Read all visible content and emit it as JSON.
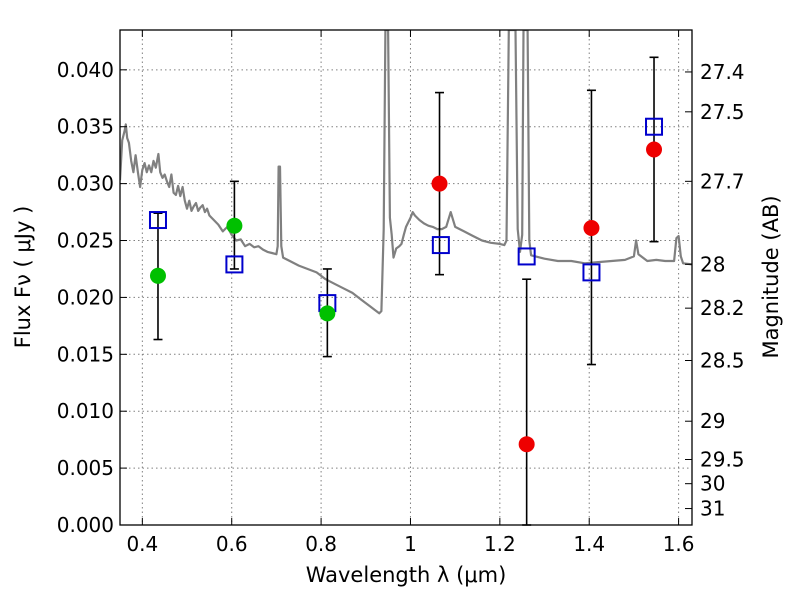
{
  "chart_data": {
    "type": "scatter",
    "xlabel": "Wavelength  λ (μm)",
    "ylabel": "Flux  Fν  ( μJy )",
    "y2label": "Magnitude (AB)",
    "xlim": [
      0.35,
      1.63
    ],
    "ylim": [
      0.0,
      0.0435
    ],
    "grid": true,
    "x_ticks": [
      {
        "value": 0.4,
        "label": "0.4"
      },
      {
        "value": 0.6,
        "label": "0.6"
      },
      {
        "value": 0.8,
        "label": "0.8"
      },
      {
        "value": 1.0,
        "label": "1"
      },
      {
        "value": 1.2,
        "label": "1.2"
      },
      {
        "value": 1.4,
        "label": "1.4"
      },
      {
        "value": 1.6,
        "label": "1.6"
      }
    ],
    "y_ticks": [
      {
        "value": 0.0,
        "label": "0.000"
      },
      {
        "value": 0.005,
        "label": "0.005"
      },
      {
        "value": 0.01,
        "label": "0.010"
      },
      {
        "value": 0.015,
        "label": "0.015"
      },
      {
        "value": 0.02,
        "label": "0.020"
      },
      {
        "value": 0.025,
        "label": "0.025"
      },
      {
        "value": 0.03,
        "label": "0.030"
      },
      {
        "value": 0.035,
        "label": "0.035"
      },
      {
        "value": 0.04,
        "label": "0.040"
      }
    ],
    "y2_ticks": [
      {
        "value": 27.4,
        "label": "27.4"
      },
      {
        "value": 27.5,
        "label": "27.5"
      },
      {
        "value": 27.7,
        "label": "27.7"
      },
      {
        "value": 28,
        "label": "28"
      },
      {
        "value": 28.2,
        "label": "28.2"
      },
      {
        "value": 28.5,
        "label": "28.5"
      },
      {
        "value": 29,
        "label": "29"
      },
      {
        "value": 29.5,
        "label": "29.5"
      },
      {
        "value": 30,
        "label": "30"
      },
      {
        "value": 31,
        "label": "31"
      }
    ],
    "observed_green": [
      {
        "x": 0.435,
        "y": 0.0219,
        "err_low": 0.0163,
        "err_high": 0.0274
      },
      {
        "x": 0.606,
        "y": 0.0263,
        "err_low": 0.0225,
        "err_high": 0.0302
      },
      {
        "x": 0.814,
        "y": 0.0186,
        "err_low": 0.0148,
        "err_high": 0.0225
      }
    ],
    "observed_red": [
      {
        "x": 1.065,
        "y": 0.03,
        "err_low": 0.022,
        "err_high": 0.038
      },
      {
        "x": 1.26,
        "y": 0.0071,
        "err_low": 0.0,
        "err_high": 0.0216
      },
      {
        "x": 1.405,
        "y": 0.0261,
        "err_low": 0.0141,
        "err_high": 0.0382
      },
      {
        "x": 1.545,
        "y": 0.033,
        "err_low": 0.0249,
        "err_high": 0.0411
      }
    ],
    "model_points": [
      {
        "x": 0.435,
        "y": 0.0268
      },
      {
        "x": 0.606,
        "y": 0.0229
      },
      {
        "x": 0.814,
        "y": 0.0195
      },
      {
        "x": 1.068,
        "y": 0.0246
      },
      {
        "x": 1.26,
        "y": 0.0236
      },
      {
        "x": 1.405,
        "y": 0.0222
      },
      {
        "x": 1.545,
        "y": 0.035
      }
    ],
    "sed_curve": [
      [
        0.35,
        0.0303
      ],
      [
        0.355,
        0.0338
      ],
      [
        0.36,
        0.0346
      ],
      [
        0.363,
        0.0352
      ],
      [
        0.366,
        0.034
      ],
      [
        0.37,
        0.0336
      ],
      [
        0.375,
        0.032
      ],
      [
        0.38,
        0.031
      ],
      [
        0.385,
        0.0325
      ],
      [
        0.39,
        0.031
      ],
      [
        0.395,
        0.0297
      ],
      [
        0.4,
        0.0312
      ],
      [
        0.405,
        0.0318
      ],
      [
        0.41,
        0.031
      ],
      [
        0.415,
        0.0316
      ],
      [
        0.42,
        0.031
      ],
      [
        0.425,
        0.032
      ],
      [
        0.43,
        0.0314
      ],
      [
        0.436,
        0.0326
      ],
      [
        0.44,
        0.031
      ],
      [
        0.445,
        0.0305
      ],
      [
        0.45,
        0.0308
      ],
      [
        0.455,
        0.0302
      ],
      [
        0.46,
        0.0297
      ],
      [
        0.465,
        0.0308
      ],
      [
        0.47,
        0.0292
      ],
      [
        0.475,
        0.029
      ],
      [
        0.48,
        0.0298
      ],
      [
        0.485,
        0.0289
      ],
      [
        0.49,
        0.0297
      ],
      [
        0.495,
        0.0285
      ],
      [
        0.5,
        0.0278
      ],
      [
        0.505,
        0.0285
      ],
      [
        0.51,
        0.0276
      ],
      [
        0.515,
        0.028
      ],
      [
        0.52,
        0.0283
      ],
      [
        0.525,
        0.0276
      ],
      [
        0.53,
        0.0279
      ],
      [
        0.535,
        0.0281
      ],
      [
        0.54,
        0.0275
      ],
      [
        0.545,
        0.0278
      ],
      [
        0.55,
        0.0272
      ],
      [
        0.56,
        0.0268
      ],
      [
        0.57,
        0.0264
      ],
      [
        0.58,
        0.0258
      ],
      [
        0.59,
        0.0262
      ],
      [
        0.6,
        0.0255
      ],
      [
        0.61,
        0.025
      ],
      [
        0.62,
        0.0251
      ],
      [
        0.63,
        0.0245
      ],
      [
        0.64,
        0.0247
      ],
      [
        0.65,
        0.0244
      ],
      [
        0.66,
        0.0245
      ],
      [
        0.67,
        0.0242
      ],
      [
        0.68,
        0.024
      ],
      [
        0.69,
        0.0239
      ],
      [
        0.7,
        0.0238
      ],
      [
        0.703,
        0.0245
      ],
      [
        0.705,
        0.0315
      ],
      [
        0.708,
        0.0315
      ],
      [
        0.711,
        0.0245
      ],
      [
        0.715,
        0.0235
      ],
      [
        0.73,
        0.0232
      ],
      [
        0.75,
        0.0228
      ],
      [
        0.77,
        0.0225
      ],
      [
        0.79,
        0.0222
      ],
      [
        0.81,
        0.0216
      ],
      [
        0.83,
        0.0212
      ],
      [
        0.85,
        0.0208
      ],
      [
        0.87,
        0.0204
      ],
      [
        0.89,
        0.0198
      ],
      [
        0.91,
        0.0192
      ],
      [
        0.92,
        0.0189
      ],
      [
        0.93,
        0.0186
      ],
      [
        0.935,
        0.0188
      ],
      [
        0.94,
        0.026
      ],
      [
        0.944,
        0.0435
      ],
      [
        0.95,
        0.0435
      ],
      [
        0.954,
        0.027
      ],
      [
        0.958,
        0.0255
      ],
      [
        0.962,
        0.0235
      ],
      [
        0.968,
        0.0243
      ],
      [
        0.975,
        0.0245
      ],
      [
        0.98,
        0.0247
      ],
      [
        0.985,
        0.0255
      ],
      [
        0.99,
        0.0262
      ],
      [
        1.0,
        0.027
      ],
      [
        1.005,
        0.0275
      ],
      [
        1.01,
        0.0272
      ],
      [
        1.02,
        0.0268
      ],
      [
        1.03,
        0.0265
      ],
      [
        1.04,
        0.0263
      ],
      [
        1.05,
        0.0262
      ],
      [
        1.06,
        0.026
      ],
      [
        1.07,
        0.026
      ],
      [
        1.08,
        0.0262
      ],
      [
        1.09,
        0.0275
      ],
      [
        1.1,
        0.0262
      ],
      [
        1.12,
        0.0258
      ],
      [
        1.14,
        0.0254
      ],
      [
        1.16,
        0.025
      ],
      [
        1.18,
        0.0248
      ],
      [
        1.2,
        0.0247
      ],
      [
        1.21,
        0.0246
      ],
      [
        1.215,
        0.025
      ],
      [
        1.22,
        0.0435
      ],
      [
        1.235,
        0.0435
      ],
      [
        1.24,
        0.026
      ],
      [
        1.245,
        0.024
      ],
      [
        1.25,
        0.0255
      ],
      [
        1.253,
        0.0435
      ],
      [
        1.262,
        0.0435
      ],
      [
        1.266,
        0.025
      ],
      [
        1.27,
        0.0237
      ],
      [
        1.3,
        0.0234
      ],
      [
        1.33,
        0.0232
      ],
      [
        1.36,
        0.0232
      ],
      [
        1.39,
        0.023
      ],
      [
        1.42,
        0.0231
      ],
      [
        1.45,
        0.0232
      ],
      [
        1.48,
        0.0233
      ],
      [
        1.5,
        0.0236
      ],
      [
        1.505,
        0.025
      ],
      [
        1.51,
        0.0238
      ],
      [
        1.53,
        0.0232
      ],
      [
        1.55,
        0.0233
      ],
      [
        1.57,
        0.0232
      ],
      [
        1.59,
        0.0232
      ],
      [
        1.595,
        0.0252
      ],
      [
        1.6,
        0.0254
      ],
      [
        1.605,
        0.0236
      ],
      [
        1.61,
        0.023
      ],
      [
        1.63,
        0.0229
      ]
    ],
    "colors": {
      "sed_curve": "#808080",
      "observed_green": "#00c000",
      "observed_red": "#ee0000",
      "model_points": "#0000cc",
      "error_bars": "#000000",
      "grid": "#808080"
    }
  }
}
